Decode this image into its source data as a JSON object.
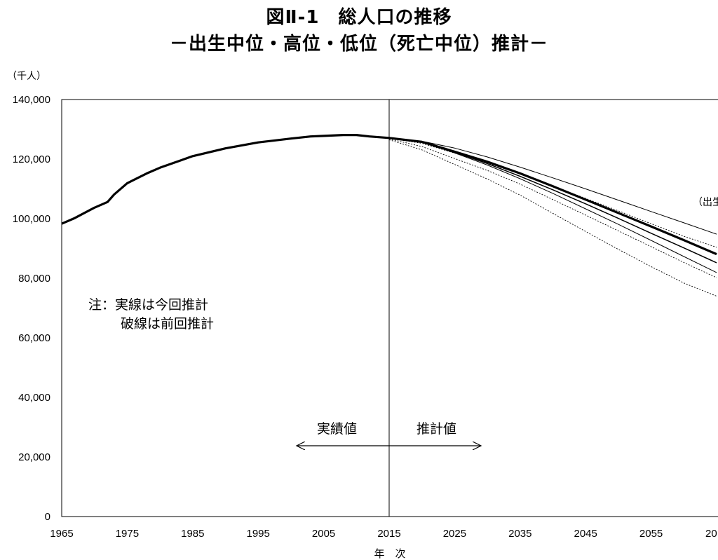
{
  "chart_data": {
    "type": "line",
    "title": "図Ⅱ-1　総人口の推移",
    "subtitle": "－出生中位・高位・低位（死亡中位）推計－",
    "ylabel": "（千人）",
    "xlabel": "年　次",
    "x_ticks": [
      "1965",
      "1975",
      "1985",
      "1995",
      "2005",
      "2015",
      "2025",
      "2035",
      "2045",
      "2055",
      "20"
    ],
    "y_ticks": [
      "0",
      "20,000",
      "40,000",
      "60,000",
      "80,000",
      "100,000",
      "120,000",
      "140,000"
    ],
    "xlim": [
      1965,
      2065
    ],
    "ylim": [
      0,
      140000
    ],
    "grid": false,
    "divider_year": 2015,
    "annotations": {
      "note_line1": "注：実線は今回推計",
      "note_line2": "破線は前回推計",
      "actual_label": "実績値",
      "projection_label": "推計値",
      "right_edge_label": "（出生"
    },
    "series": [
      {
        "style": "actual",
        "x": [
          1965,
          1967,
          1970,
          1972,
          1973,
          1975,
          1978,
          1980,
          1985,
          1990,
          1995,
          2000,
          2003,
          2005,
          2008,
          2010,
          2012,
          2015
        ],
        "values": [
          98300,
          100200,
          103700,
          105600,
          108100,
          111900,
          115200,
          117100,
          121000,
          123600,
          125600,
          126900,
          127600,
          127800,
          128100,
          128100,
          127600,
          127100
        ]
      },
      {
        "style": "current-medium",
        "x": [
          2015,
          2020,
          2025,
          2030,
          2035,
          2040,
          2045,
          2050,
          2055,
          2060,
          2065
        ],
        "values": [
          127100,
          125800,
          122500,
          119100,
          115200,
          110900,
          106400,
          101900,
          97400,
          92800,
          88100
        ]
      },
      {
        "style": "current-high",
        "x": [
          2015,
          2020,
          2025,
          2030,
          2035,
          2040,
          2045,
          2050,
          2055,
          2060,
          2065
        ],
        "values": [
          127100,
          126000,
          123700,
          120700,
          117300,
          113700,
          110000,
          106200,
          102400,
          98600,
          94800
        ]
      },
      {
        "style": "current-low",
        "x": [
          2015,
          2020,
          2025,
          2030,
          2035,
          2040,
          2045,
          2050,
          2055,
          2060,
          2065
        ],
        "values": [
          127100,
          125600,
          122100,
          118000,
          113400,
          108500,
          103300,
          98100,
          92700,
          87300,
          81900
        ]
      },
      {
        "style": "current-medium-alt",
        "x": [
          2015,
          2020,
          2025,
          2030,
          2035,
          2040,
          2045,
          2050,
          2055,
          2060,
          2065
        ],
        "values": [
          127100,
          125700,
          122300,
          118500,
          114200,
          109700,
          105000,
          100100,
          95100,
          90200,
          85200
        ]
      },
      {
        "style": "previous-high",
        "x": [
          2015,
          2020,
          2025,
          2030,
          2035,
          2040,
          2045,
          2050,
          2055,
          2060,
          2065
        ],
        "values": [
          127000,
          125300,
          122000,
          118700,
          115000,
          111000,
          106800,
          102600,
          98300,
          94100,
          90400
        ]
      },
      {
        "style": "previous-medium",
        "x": [
          2015,
          2020,
          2025,
          2030,
          2035,
          2040,
          2045,
          2050,
          2055,
          2060,
          2065
        ],
        "values": [
          126800,
          124200,
          120200,
          116200,
          111600,
          106400,
          101200,
          95900,
          90600,
          85300,
          80200
        ]
      },
      {
        "style": "previous-low",
        "x": [
          2015,
          2020,
          2025,
          2030,
          2035,
          2040,
          2045,
          2050,
          2055,
          2060,
          2065
        ],
        "values": [
          126500,
          123100,
          118200,
          113300,
          107900,
          101800,
          95700,
          89700,
          83900,
          78400,
          74000
        ]
      }
    ]
  }
}
